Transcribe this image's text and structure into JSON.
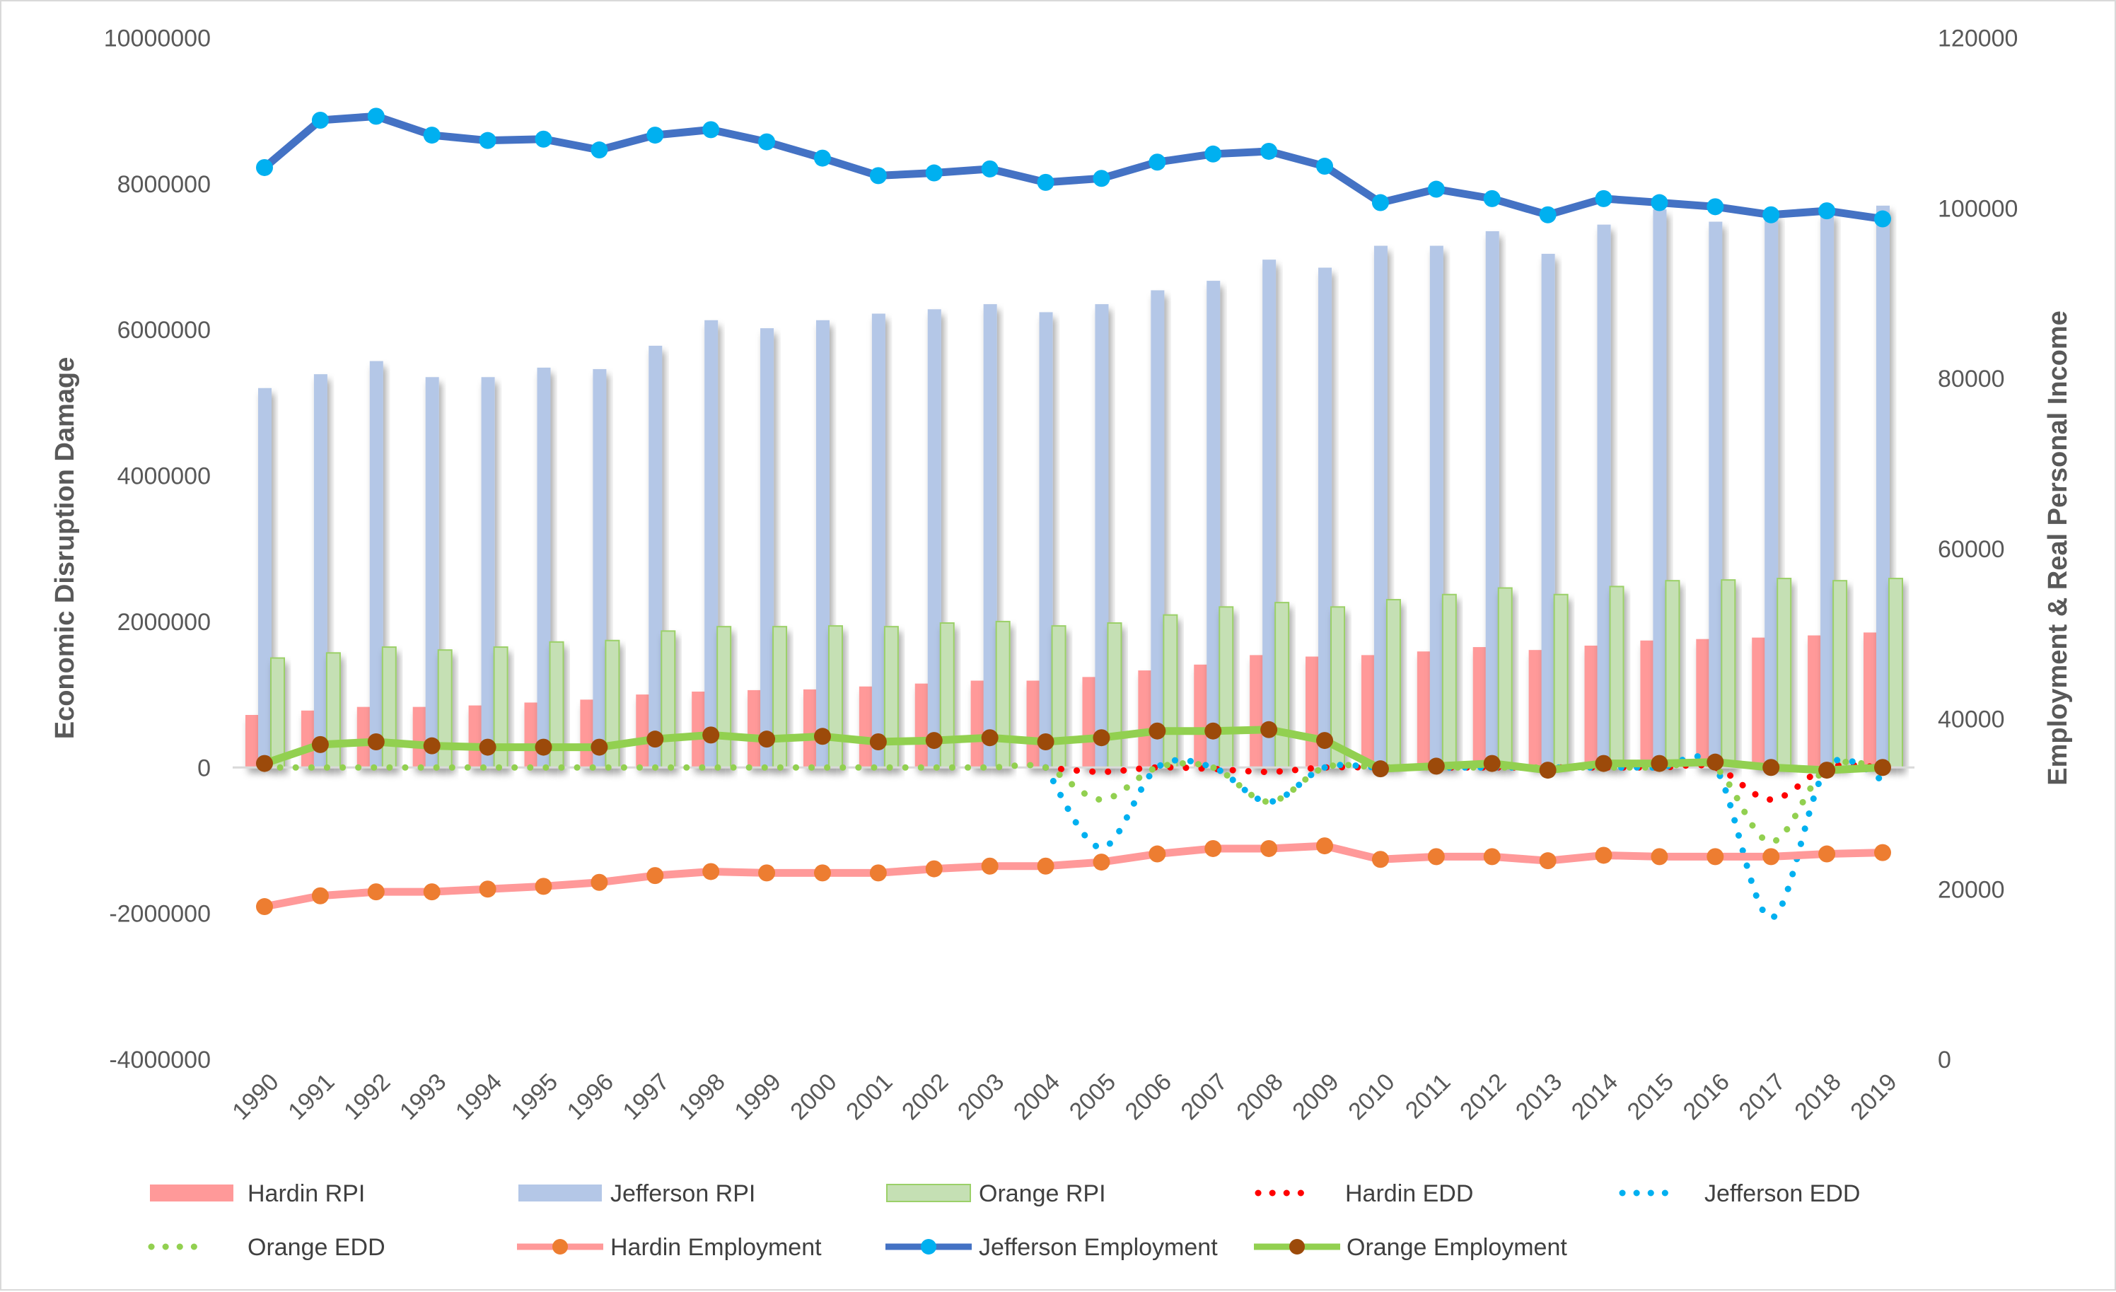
{
  "chart_data": {
    "type": "bar+line",
    "title": "",
    "xlabel": "",
    "ylabel_left": "Economic Disruption Damage",
    "ylabel_right": "Employment & Real Personal Income",
    "ylim_left": [
      -4000000,
      10000000
    ],
    "ylim_right": [
      0,
      120000
    ],
    "yticks_left": [
      "10000000",
      "8000000",
      "6000000",
      "4000000",
      "2000000",
      "0",
      "-2000000",
      "-4000000"
    ],
    "yticks_right": [
      "120000",
      "100000",
      "80000",
      "60000",
      "40000",
      "20000",
      "0"
    ],
    "grid": false,
    "legend_position": "bottom",
    "categories": [
      "1990",
      "1991",
      "1992",
      "1993",
      "1994",
      "1995",
      "1996",
      "1997",
      "1998",
      "1999",
      "2000",
      "2001",
      "2002",
      "2003",
      "2004",
      "2005",
      "2006",
      "2007",
      "2008",
      "2009",
      "2010",
      "2011",
      "2012",
      "2013",
      "2014",
      "2015",
      "2016",
      "2017",
      "2018",
      "2019"
    ],
    "series": [
      {
        "name": "Hardin RPI",
        "type": "bar",
        "axis": "left",
        "color": "#FF9999",
        "values": [
          720000,
          780000,
          830000,
          830000,
          850000,
          890000,
          930000,
          1000000,
          1040000,
          1060000,
          1070000,
          1110000,
          1150000,
          1190000,
          1190000,
          1240000,
          1330000,
          1410000,
          1540000,
          1520000,
          1540000,
          1590000,
          1650000,
          1610000,
          1670000,
          1740000,
          1760000,
          1780000,
          1810000,
          1850000
        ]
      },
      {
        "name": "Jefferson RPI",
        "type": "bar",
        "axis": "left",
        "color": "#B4C7E7",
        "values": [
          5200000,
          5390000,
          5570000,
          5350000,
          5350000,
          5480000,
          5460000,
          5780000,
          6130000,
          6020000,
          6130000,
          6220000,
          6280000,
          6350000,
          6240000,
          6350000,
          6540000,
          6670000,
          6960000,
          6850000,
          7150000,
          7150000,
          7350000,
          7040000,
          7440000,
          7650000,
          7480000,
          7600000,
          7600000,
          7700000
        ]
      },
      {
        "name": "Orange RPI",
        "type": "bar",
        "axis": "left",
        "color": "#C5E0B4",
        "values": [
          1500000,
          1570000,
          1650000,
          1610000,
          1650000,
          1720000,
          1740000,
          1870000,
          1930000,
          1930000,
          1940000,
          1930000,
          1980000,
          2000000,
          1940000,
          1980000,
          2090000,
          2200000,
          2260000,
          2200000,
          2300000,
          2370000,
          2460000,
          2370000,
          2480000,
          2560000,
          2570000,
          2590000,
          2560000,
          2590000
        ]
      },
      {
        "name": "Hardin EDD",
        "type": "dotted-line",
        "axis": "left",
        "color": "#FF0000",
        "values": [
          null,
          null,
          null,
          null,
          null,
          null,
          null,
          null,
          null,
          null,
          null,
          null,
          null,
          null,
          0,
          -60000,
          0,
          -20000,
          -60000,
          0,
          0,
          0,
          0,
          0,
          0,
          0,
          0,
          -440000,
          0,
          0
        ]
      },
      {
        "name": "Jefferson EDD",
        "type": "dotted-line",
        "axis": "left",
        "color": "#00B0F0",
        "values": [
          null,
          null,
          null,
          null,
          null,
          null,
          null,
          null,
          null,
          null,
          null,
          null,
          null,
          null,
          0,
          -1100000,
          0,
          0,
          -470000,
          0,
          0,
          0,
          0,
          0,
          0,
          0,
          0,
          -2060000,
          0,
          -170000
        ]
      },
      {
        "name": "Orange EDD",
        "type": "dotted-line",
        "axis": "left",
        "color": "#92D050",
        "values": [
          0,
          0,
          0,
          0,
          0,
          0,
          0,
          0,
          0,
          0,
          0,
          0,
          0,
          0,
          0,
          -440000,
          0,
          0,
          -470000,
          0,
          0,
          0,
          0,
          0,
          0,
          0,
          0,
          -1020000,
          0,
          0
        ]
      },
      {
        "name": "Hardin Employment",
        "type": "line-marker",
        "axis": "right",
        "color": "#FF9999",
        "marker": "#ED7D31",
        "values": [
          17940,
          19210,
          19680,
          19680,
          20000,
          20320,
          20790,
          21590,
          22060,
          21900,
          21900,
          21900,
          22380,
          22700,
          22700,
          23170,
          24130,
          24760,
          24760,
          25080,
          23490,
          23810,
          23810,
          23330,
          23970,
          23810,
          23810,
          23810,
          24130,
          24290
        ]
      },
      {
        "name": "Jefferson Employment",
        "type": "line-marker",
        "axis": "right",
        "color": "#4472C4",
        "marker": "#00B0F0",
        "values": [
          104760,
          110320,
          110790,
          108570,
          107940,
          108100,
          106830,
          108570,
          109210,
          107780,
          105870,
          103810,
          104130,
          104600,
          103020,
          103490,
          105400,
          106350,
          106670,
          104920,
          100640,
          102220,
          101110,
          99210,
          101110,
          100640,
          100160,
          99210,
          99680,
          98730
        ]
      },
      {
        "name": "Orange Employment",
        "type": "line-marker",
        "axis": "right",
        "color": "#92D050",
        "marker": "#9C4A0A",
        "values": [
          34760,
          36980,
          37300,
          36830,
          36670,
          36670,
          36670,
          37620,
          38100,
          37620,
          37940,
          37300,
          37460,
          37780,
          37300,
          37780,
          38570,
          38570,
          38730,
          37460,
          34130,
          34440,
          34760,
          33970,
          34760,
          34760,
          34920,
          34290,
          33970,
          34290
        ]
      }
    ]
  }
}
